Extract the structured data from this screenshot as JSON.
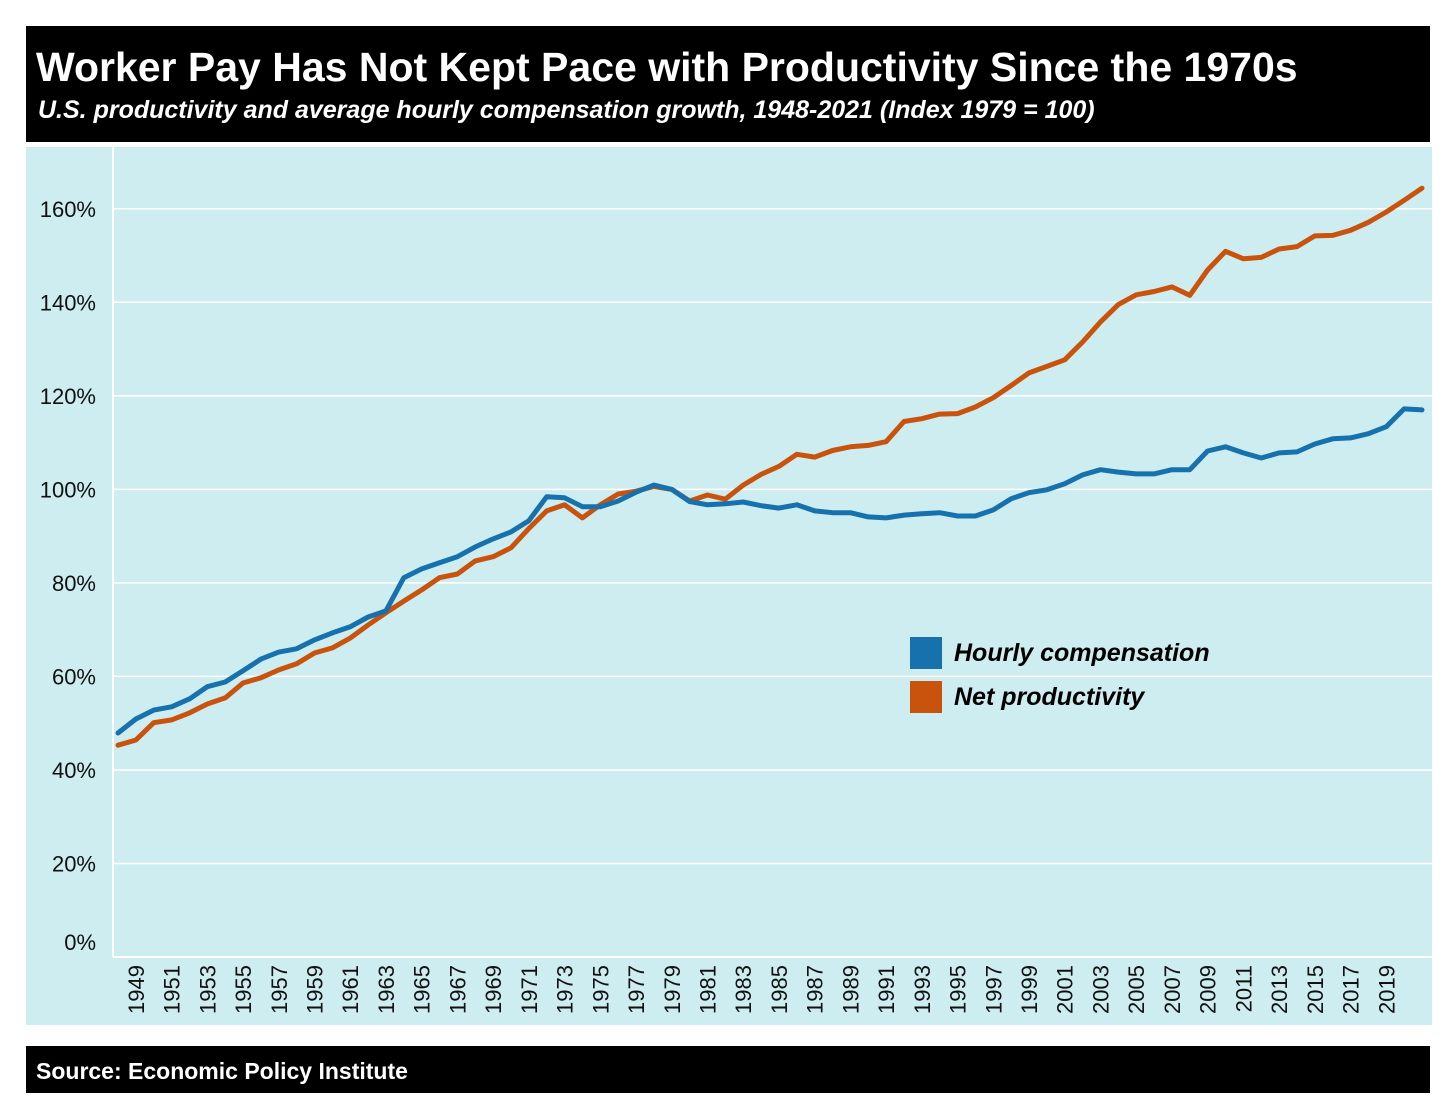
{
  "chart_data": {
    "type": "line",
    "title": "Worker Pay Has Not Kept Pace with Productivity Since the 1970s",
    "subtitle": "U.S. productivity and average hourly compensation growth, 1948-2021 (Index 1979 = 100)",
    "source": "Source: Economic Policy Institute",
    "xlabel": "",
    "ylabel": "",
    "ylim": [
      0,
      170
    ],
    "xlim": [
      1948,
      2021
    ],
    "grid": true,
    "legend_position": "center-right",
    "y_ticks": [
      0,
      20,
      40,
      60,
      80,
      100,
      120,
      140,
      160
    ],
    "y_tick_labels": [
      "0%",
      "20%",
      "40%",
      "60%",
      "80%",
      "100%",
      "120%",
      "140%",
      "160%"
    ],
    "x_tick_labels": [
      "1949",
      "1951",
      "1953",
      "1955",
      "1957",
      "1959",
      "1961",
      "1963",
      "1965",
      "1967",
      "1969",
      "1971",
      "1973",
      "1975",
      "1977",
      "1979",
      "1981",
      "1983",
      "1985",
      "1987",
      "1989",
      "1991",
      "1993",
      "1995",
      "1997",
      "1999",
      "2001",
      "2003",
      "2005",
      "2007",
      "2009",
      "2011",
      "2013",
      "2015",
      "2017",
      "2019"
    ],
    "x_start": 1948,
    "series": [
      {
        "name": "Hourly compensation",
        "color": "#1771ad",
        "values": [
          47.9,
          50.9,
          52.8,
          53.5,
          55.2,
          57.8,
          58.8,
          61.2,
          63.7,
          65.2,
          65.9,
          67.8,
          69.3,
          70.6,
          72.7,
          74.0,
          81.1,
          83.0,
          84.3,
          85.6,
          87.7,
          89.4,
          90.9,
          93.3,
          98.4,
          98.2,
          96.3,
          96.3,
          97.5,
          99.4,
          100.9,
          100.0,
          97.4,
          96.7,
          96.9,
          97.3,
          96.5,
          96.0,
          96.7,
          95.4,
          95.0,
          95.0,
          94.1,
          93.9,
          94.5,
          94.8,
          95.0,
          94.3,
          94.3,
          95.6,
          98.0,
          99.3,
          99.9,
          101.2,
          103.1,
          104.2,
          103.7,
          103.3,
          103.3,
          104.2,
          104.2,
          108.2,
          109.1,
          107.8,
          106.7,
          107.8,
          108.0,
          109.7,
          110.8,
          111.0,
          111.9,
          113.4,
          117.2,
          117.0
        ]
      },
      {
        "name": "Net productivity",
        "color": "#c9530c",
        "values": [
          45.3,
          46.4,
          50.1,
          50.7,
          52.2,
          54.1,
          55.4,
          58.6,
          59.7,
          61.4,
          62.7,
          65.0,
          66.1,
          68.2,
          71.0,
          73.6,
          76.1,
          78.5,
          81.1,
          81.9,
          84.7,
          85.6,
          87.5,
          91.6,
          95.4,
          96.7,
          93.9,
          96.7,
          99.0,
          99.6,
          100.6,
          100.0,
          97.5,
          98.8,
          97.9,
          100.9,
          103.2,
          104.9,
          107.5,
          106.9,
          108.3,
          109.1,
          109.4,
          110.2,
          114.5,
          115.1,
          116.1,
          116.2,
          117.6,
          119.6,
          122.2,
          124.9,
          126.3,
          127.7,
          131.5,
          135.8,
          139.5,
          141.6,
          142.3,
          143.3,
          141.5,
          146.9,
          150.9,
          149.3,
          149.6,
          151.4,
          151.9,
          154.2,
          154.3,
          155.4,
          157.1,
          159.3,
          161.8,
          164.4
        ]
      }
    ]
  }
}
